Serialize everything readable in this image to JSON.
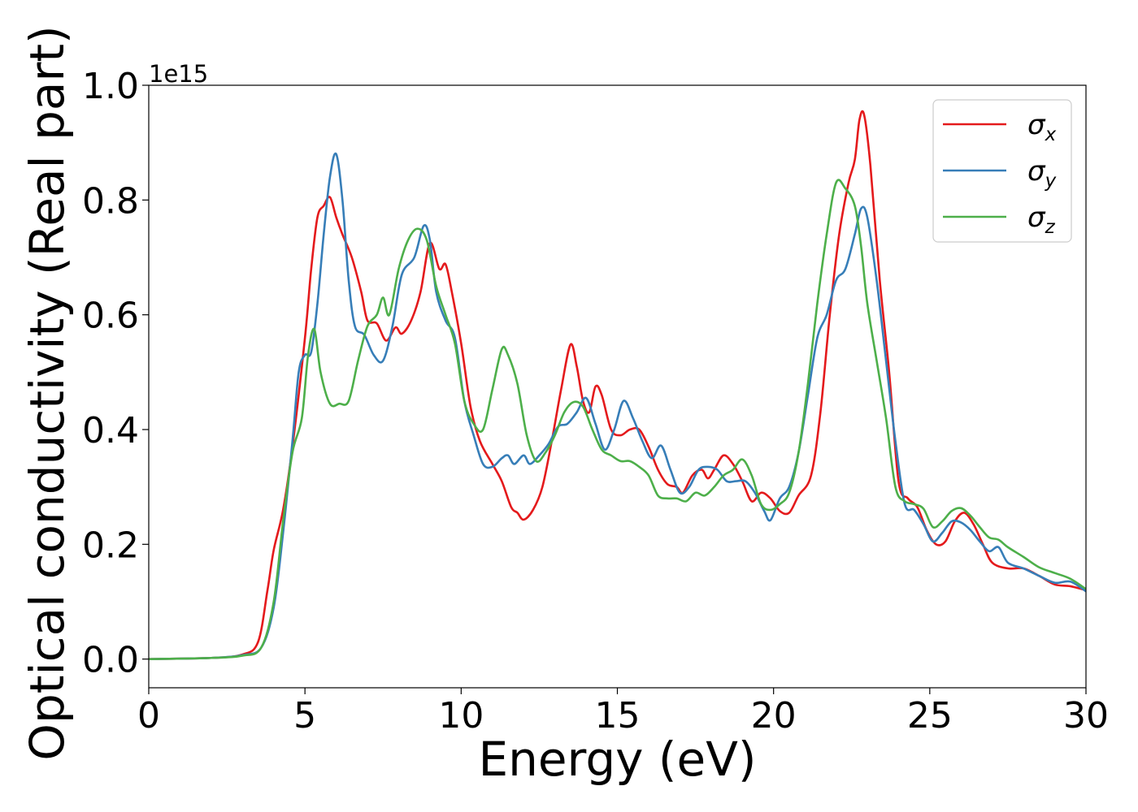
{
  "chart_data": {
    "type": "line",
    "title": "",
    "xlabel": "Energy (eV)",
    "ylabel": "Optical conductivity (Real part)",
    "y_offset_text": "1e15",
    "xlim": [
      0,
      30
    ],
    "ylim": [
      -0.05,
      1.0
    ],
    "x_ticks": [
      0,
      5,
      10,
      15,
      20,
      25,
      30
    ],
    "x_tick_labels": [
      "0",
      "5",
      "10",
      "15",
      "20",
      "25",
      "30"
    ],
    "y_ticks": [
      0.0,
      0.2,
      0.4,
      0.6,
      0.8,
      1.0
    ],
    "y_tick_labels": [
      "0.0",
      "0.2",
      "0.4",
      "0.6",
      "0.8",
      "1.0"
    ],
    "grid": false,
    "legend_position": "top-right",
    "series": [
      {
        "name": "σx",
        "symbol": "σ",
        "subscript": "x",
        "color": "#e41a1c",
        "points": [
          [
            0,
            0
          ],
          [
            2,
            0.002
          ],
          [
            3,
            0.008
          ],
          [
            3.5,
            0.03
          ],
          [
            3.8,
            0.12
          ],
          [
            4.0,
            0.19
          ],
          [
            4.3,
            0.26
          ],
          [
            4.6,
            0.37
          ],
          [
            5.0,
            0.56
          ],
          [
            5.2,
            0.68
          ],
          [
            5.4,
            0.77
          ],
          [
            5.6,
            0.79
          ],
          [
            5.8,
            0.805
          ],
          [
            6.0,
            0.77
          ],
          [
            6.2,
            0.74
          ],
          [
            6.5,
            0.7
          ],
          [
            6.8,
            0.64
          ],
          [
            7.0,
            0.59
          ],
          [
            7.3,
            0.585
          ],
          [
            7.6,
            0.555
          ],
          [
            7.9,
            0.578
          ],
          [
            8.1,
            0.567
          ],
          [
            8.4,
            0.59
          ],
          [
            8.7,
            0.64
          ],
          [
            9.0,
            0.725
          ],
          [
            9.3,
            0.68
          ],
          [
            9.5,
            0.688
          ],
          [
            9.7,
            0.64
          ],
          [
            10.0,
            0.55
          ],
          [
            10.3,
            0.44
          ],
          [
            10.6,
            0.38
          ],
          [
            11.0,
            0.34
          ],
          [
            11.3,
            0.31
          ],
          [
            11.6,
            0.265
          ],
          [
            11.8,
            0.255
          ],
          [
            12.0,
            0.243
          ],
          [
            12.3,
            0.26
          ],
          [
            12.6,
            0.3
          ],
          [
            12.9,
            0.38
          ],
          [
            13.2,
            0.47
          ],
          [
            13.5,
            0.548
          ],
          [
            13.7,
            0.51
          ],
          [
            13.9,
            0.45
          ],
          [
            14.1,
            0.43
          ],
          [
            14.3,
            0.475
          ],
          [
            14.5,
            0.46
          ],
          [
            14.8,
            0.4
          ],
          [
            15.1,
            0.39
          ],
          [
            15.4,
            0.4
          ],
          [
            15.7,
            0.4
          ],
          [
            16.0,
            0.37
          ],
          [
            16.3,
            0.33
          ],
          [
            16.6,
            0.305
          ],
          [
            16.9,
            0.3
          ],
          [
            17.1,
            0.29
          ],
          [
            17.4,
            0.32
          ],
          [
            17.7,
            0.33
          ],
          [
            17.9,
            0.315
          ],
          [
            18.1,
            0.33
          ],
          [
            18.4,
            0.355
          ],
          [
            18.7,
            0.34
          ],
          [
            19.0,
            0.31
          ],
          [
            19.3,
            0.275
          ],
          [
            19.6,
            0.29
          ],
          [
            19.9,
            0.28
          ],
          [
            20.2,
            0.258
          ],
          [
            20.5,
            0.255
          ],
          [
            20.8,
            0.285
          ],
          [
            21.2,
            0.32
          ],
          [
            21.5,
            0.43
          ],
          [
            21.8,
            0.6
          ],
          [
            22.1,
            0.74
          ],
          [
            22.4,
            0.83
          ],
          [
            22.6,
            0.87
          ],
          [
            22.75,
            0.94
          ],
          [
            22.9,
            0.948
          ],
          [
            23.1,
            0.86
          ],
          [
            23.4,
            0.66
          ],
          [
            23.7,
            0.5
          ],
          [
            24.0,
            0.31
          ],
          [
            24.3,
            0.28
          ],
          [
            24.6,
            0.265
          ],
          [
            24.9,
            0.225
          ],
          [
            25.2,
            0.2
          ],
          [
            25.5,
            0.205
          ],
          [
            25.8,
            0.24
          ],
          [
            26.1,
            0.255
          ],
          [
            26.4,
            0.235
          ],
          [
            26.7,
            0.2
          ],
          [
            27.0,
            0.168
          ],
          [
            27.5,
            0.158
          ],
          [
            28.0,
            0.158
          ],
          [
            28.5,
            0.145
          ],
          [
            29.0,
            0.13
          ],
          [
            29.5,
            0.127
          ],
          [
            30.0,
            0.12
          ]
        ]
      },
      {
        "name": "σy",
        "symbol": "σ",
        "subscript": "y",
        "color": "#377eb8",
        "points": [
          [
            0,
            0
          ],
          [
            2,
            0.002
          ],
          [
            3,
            0.007
          ],
          [
            3.6,
            0.02
          ],
          [
            4.0,
            0.09
          ],
          [
            4.3,
            0.22
          ],
          [
            4.6,
            0.38
          ],
          [
            4.8,
            0.5
          ],
          [
            5.0,
            0.53
          ],
          [
            5.2,
            0.535
          ],
          [
            5.4,
            0.62
          ],
          [
            5.6,
            0.74
          ],
          [
            5.8,
            0.84
          ],
          [
            6.0,
            0.88
          ],
          [
            6.2,
            0.8
          ],
          [
            6.4,
            0.66
          ],
          [
            6.6,
            0.58
          ],
          [
            6.9,
            0.565
          ],
          [
            7.2,
            0.53
          ],
          [
            7.5,
            0.52
          ],
          [
            7.8,
            0.58
          ],
          [
            8.1,
            0.67
          ],
          [
            8.5,
            0.7
          ],
          [
            8.8,
            0.755
          ],
          [
            9.0,
            0.73
          ],
          [
            9.2,
            0.64
          ],
          [
            9.5,
            0.59
          ],
          [
            9.8,
            0.56
          ],
          [
            10.1,
            0.45
          ],
          [
            10.4,
            0.39
          ],
          [
            10.7,
            0.34
          ],
          [
            11.0,
            0.335
          ],
          [
            11.3,
            0.35
          ],
          [
            11.5,
            0.355
          ],
          [
            11.7,
            0.34
          ],
          [
            12.0,
            0.355
          ],
          [
            12.2,
            0.34
          ],
          [
            12.5,
            0.355
          ],
          [
            12.8,
            0.375
          ],
          [
            13.1,
            0.405
          ],
          [
            13.4,
            0.41
          ],
          [
            13.7,
            0.43
          ],
          [
            14.0,
            0.455
          ],
          [
            14.3,
            0.41
          ],
          [
            14.6,
            0.365
          ],
          [
            14.9,
            0.4
          ],
          [
            15.2,
            0.45
          ],
          [
            15.5,
            0.42
          ],
          [
            15.8,
            0.38
          ],
          [
            16.1,
            0.35
          ],
          [
            16.4,
            0.372
          ],
          [
            16.7,
            0.33
          ],
          [
            17.0,
            0.29
          ],
          [
            17.3,
            0.3
          ],
          [
            17.6,
            0.33
          ],
          [
            17.9,
            0.335
          ],
          [
            18.2,
            0.33
          ],
          [
            18.5,
            0.31
          ],
          [
            18.8,
            0.31
          ],
          [
            19.1,
            0.31
          ],
          [
            19.4,
            0.29
          ],
          [
            19.7,
            0.258
          ],
          [
            19.9,
            0.242
          ],
          [
            20.2,
            0.28
          ],
          [
            20.5,
            0.3
          ],
          [
            20.8,
            0.36
          ],
          [
            21.1,
            0.46
          ],
          [
            21.4,
            0.56
          ],
          [
            21.7,
            0.6
          ],
          [
            22.0,
            0.66
          ],
          [
            22.3,
            0.68
          ],
          [
            22.6,
            0.74
          ],
          [
            22.8,
            0.785
          ],
          [
            23.0,
            0.77
          ],
          [
            23.3,
            0.66
          ],
          [
            23.6,
            0.52
          ],
          [
            23.9,
            0.38
          ],
          [
            24.2,
            0.27
          ],
          [
            24.5,
            0.26
          ],
          [
            24.8,
            0.235
          ],
          [
            25.1,
            0.205
          ],
          [
            25.4,
            0.22
          ],
          [
            25.7,
            0.24
          ],
          [
            26.0,
            0.238
          ],
          [
            26.3,
            0.225
          ],
          [
            26.6,
            0.205
          ],
          [
            26.9,
            0.188
          ],
          [
            27.2,
            0.195
          ],
          [
            27.5,
            0.168
          ],
          [
            28.0,
            0.158
          ],
          [
            28.5,
            0.145
          ],
          [
            29.0,
            0.133
          ],
          [
            29.5,
            0.135
          ],
          [
            30.0,
            0.118
          ]
        ]
      },
      {
        "name": "σz",
        "symbol": "σ",
        "subscript": "z",
        "color": "#4daf4a",
        "points": [
          [
            0,
            0
          ],
          [
            2,
            0.002
          ],
          [
            3,
            0.006
          ],
          [
            3.6,
            0.02
          ],
          [
            4.0,
            0.1
          ],
          [
            4.3,
            0.24
          ],
          [
            4.6,
            0.36
          ],
          [
            4.9,
            0.42
          ],
          [
            5.1,
            0.53
          ],
          [
            5.3,
            0.575
          ],
          [
            5.5,
            0.5
          ],
          [
            5.8,
            0.445
          ],
          [
            6.1,
            0.445
          ],
          [
            6.4,
            0.45
          ],
          [
            6.7,
            0.52
          ],
          [
            7.0,
            0.58
          ],
          [
            7.3,
            0.6
          ],
          [
            7.5,
            0.63
          ],
          [
            7.7,
            0.6
          ],
          [
            8.0,
            0.68
          ],
          [
            8.3,
            0.73
          ],
          [
            8.6,
            0.75
          ],
          [
            8.9,
            0.73
          ],
          [
            9.2,
            0.65
          ],
          [
            9.5,
            0.6
          ],
          [
            9.8,
            0.55
          ],
          [
            10.1,
            0.45
          ],
          [
            10.4,
            0.41
          ],
          [
            10.7,
            0.4
          ],
          [
            11.0,
            0.47
          ],
          [
            11.3,
            0.54
          ],
          [
            11.5,
            0.53
          ],
          [
            11.8,
            0.48
          ],
          [
            12.1,
            0.39
          ],
          [
            12.4,
            0.345
          ],
          [
            12.7,
            0.36
          ],
          [
            13.0,
            0.39
          ],
          [
            13.3,
            0.43
          ],
          [
            13.6,
            0.448
          ],
          [
            13.9,
            0.44
          ],
          [
            14.2,
            0.4
          ],
          [
            14.5,
            0.365
          ],
          [
            14.8,
            0.355
          ],
          [
            15.1,
            0.345
          ],
          [
            15.4,
            0.345
          ],
          [
            15.7,
            0.335
          ],
          [
            16.0,
            0.32
          ],
          [
            16.3,
            0.285
          ],
          [
            16.6,
            0.28
          ],
          [
            16.9,
            0.28
          ],
          [
            17.2,
            0.275
          ],
          [
            17.5,
            0.29
          ],
          [
            17.8,
            0.285
          ],
          [
            18.1,
            0.3
          ],
          [
            18.4,
            0.32
          ],
          [
            18.7,
            0.33
          ],
          [
            19.0,
            0.348
          ],
          [
            19.3,
            0.32
          ],
          [
            19.6,
            0.27
          ],
          [
            19.9,
            0.26
          ],
          [
            20.2,
            0.27
          ],
          [
            20.5,
            0.29
          ],
          [
            20.8,
            0.36
          ],
          [
            21.1,
            0.48
          ],
          [
            21.4,
            0.62
          ],
          [
            21.7,
            0.74
          ],
          [
            22.0,
            0.83
          ],
          [
            22.3,
            0.82
          ],
          [
            22.6,
            0.79
          ],
          [
            22.8,
            0.72
          ],
          [
            23.0,
            0.62
          ],
          [
            23.3,
            0.52
          ],
          [
            23.6,
            0.42
          ],
          [
            23.9,
            0.3
          ],
          [
            24.2,
            0.275
          ],
          [
            24.5,
            0.27
          ],
          [
            24.8,
            0.262
          ],
          [
            25.1,
            0.23
          ],
          [
            25.4,
            0.24
          ],
          [
            25.7,
            0.258
          ],
          [
            26.0,
            0.263
          ],
          [
            26.3,
            0.25
          ],
          [
            26.6,
            0.23
          ],
          [
            26.9,
            0.212
          ],
          [
            27.2,
            0.208
          ],
          [
            27.5,
            0.195
          ],
          [
            28.0,
            0.178
          ],
          [
            28.5,
            0.16
          ],
          [
            29.0,
            0.15
          ],
          [
            29.5,
            0.14
          ],
          [
            30.0,
            0.122
          ]
        ]
      }
    ]
  }
}
